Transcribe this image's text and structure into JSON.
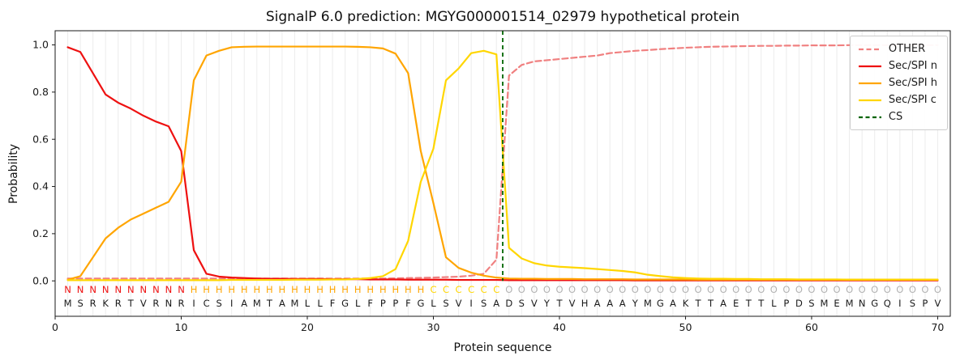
{
  "chart_data": {
    "type": "line",
    "title": "SignalP 6.0 prediction: MGYG000001514_02979 hypothetical protein",
    "xlabel": "Protein sequence",
    "ylabel": "Probability",
    "xlim": [
      0,
      71
    ],
    "ylim": [
      -0.15,
      1.06
    ],
    "xticks": [
      0,
      10,
      20,
      30,
      40,
      50,
      60,
      70
    ],
    "yticks": [
      0.0,
      0.2,
      0.4,
      0.6,
      0.8,
      1.0
    ],
    "grid": "vertical-per-residue",
    "legend_position": "upper-right",
    "x": [
      1,
      2,
      3,
      4,
      5,
      6,
      7,
      8,
      9,
      10,
      11,
      12,
      13,
      14,
      15,
      16,
      17,
      18,
      19,
      20,
      21,
      22,
      23,
      24,
      25,
      26,
      27,
      28,
      29,
      30,
      31,
      32,
      33,
      34,
      35,
      36,
      37,
      38,
      39,
      40,
      41,
      42,
      43,
      44,
      45,
      46,
      47,
      48,
      49,
      50,
      51,
      52,
      53,
      54,
      55,
      56,
      57,
      58,
      59,
      60,
      61,
      62,
      63,
      64,
      65,
      66,
      67,
      68,
      69,
      70
    ],
    "series": [
      {
        "name": "OTHER",
        "color": "#f08080",
        "dash": "7 4",
        "values": [
          0.01,
          0.01,
          0.01,
          0.01,
          0.01,
          0.01,
          0.01,
          0.01,
          0.01,
          0.01,
          0.01,
          0.01,
          0.01,
          0.01,
          0.01,
          0.01,
          0.01,
          0.01,
          0.01,
          0.01,
          0.01,
          0.01,
          0.01,
          0.01,
          0.01,
          0.01,
          0.011,
          0.012,
          0.013,
          0.014,
          0.016,
          0.018,
          0.022,
          0.03,
          0.09,
          0.87,
          0.915,
          0.93,
          0.935,
          0.94,
          0.945,
          0.95,
          0.955,
          0.965,
          0.97,
          0.975,
          0.978,
          0.982,
          0.985,
          0.988,
          0.99,
          0.992,
          0.993,
          0.994,
          0.995,
          0.996,
          0.996,
          0.997,
          0.997,
          0.998,
          0.998,
          0.998,
          0.999,
          0.999,
          0.999,
          0.999,
          0.999,
          0.999,
          0.999,
          0.999
        ]
      },
      {
        "name": "Sec/SPI n",
        "color": "#ee1111",
        "dash": null,
        "values": [
          0.99,
          0.97,
          0.88,
          0.79,
          0.755,
          0.73,
          0.7,
          0.675,
          0.655,
          0.55,
          0.13,
          0.03,
          0.018,
          0.014,
          0.012,
          0.01,
          0.009,
          0.009,
          0.008,
          0.008,
          0.008,
          0.007,
          0.007,
          0.007,
          0.006,
          0.006,
          0.006,
          0.005,
          0.005,
          0.005,
          0.005,
          0.004,
          0.004,
          0.004,
          0.004,
          0.003,
          0.003,
          0.003,
          0.003,
          0.003,
          0.003,
          0.003,
          0.003,
          0.003,
          0.003,
          0.002,
          0.002,
          0.002,
          0.002,
          0.002,
          0.002,
          0.002,
          0.002,
          0.002,
          0.002,
          0.002,
          0.002,
          0.002,
          0.002,
          0.002,
          0.002,
          0.002,
          0.002,
          0.002,
          0.002,
          0.002,
          0.002,
          0.002,
          0.002,
          0.002
        ]
      },
      {
        "name": "Sec/SPI h",
        "color": "#ffa500",
        "dash": null,
        "values": [
          0.005,
          0.02,
          0.1,
          0.18,
          0.225,
          0.26,
          0.285,
          0.31,
          0.335,
          0.42,
          0.85,
          0.955,
          0.975,
          0.99,
          0.992,
          0.993,
          0.993,
          0.993,
          0.993,
          0.993,
          0.993,
          0.993,
          0.993,
          0.992,
          0.99,
          0.985,
          0.963,
          0.88,
          0.55,
          0.33,
          0.1,
          0.055,
          0.035,
          0.022,
          0.014,
          0.01,
          0.009,
          0.009,
          0.008,
          0.008,
          0.008,
          0.007,
          0.007,
          0.007,
          0.007,
          0.006,
          0.006,
          0.006,
          0.006,
          0.006,
          0.005,
          0.005,
          0.005,
          0.005,
          0.005,
          0.005,
          0.005,
          0.005,
          0.005,
          0.005,
          0.005,
          0.005,
          0.005,
          0.005,
          0.005,
          0.005,
          0.005,
          0.005,
          0.005,
          0.005
        ]
      },
      {
        "name": "Sec/SPI c",
        "color": "#ffd600",
        "dash": null,
        "values": [
          0.003,
          0.003,
          0.003,
          0.003,
          0.003,
          0.003,
          0.003,
          0.003,
          0.003,
          0.003,
          0.003,
          0.003,
          0.003,
          0.004,
          0.004,
          0.004,
          0.004,
          0.004,
          0.005,
          0.005,
          0.005,
          0.006,
          0.006,
          0.008,
          0.012,
          0.02,
          0.05,
          0.17,
          0.42,
          0.56,
          0.85,
          0.9,
          0.965,
          0.975,
          0.96,
          0.14,
          0.095,
          0.075,
          0.065,
          0.06,
          0.057,
          0.054,
          0.05,
          0.046,
          0.042,
          0.036,
          0.026,
          0.02,
          0.015,
          0.012,
          0.01,
          0.009,
          0.009,
          0.008,
          0.008,
          0.007,
          0.007,
          0.007,
          0.006,
          0.006,
          0.006,
          0.006,
          0.005,
          0.005,
          0.005,
          0.005,
          0.005,
          0.005,
          0.005,
          0.005
        ]
      }
    ],
    "cs": {
      "name": "CS",
      "x": 35.5,
      "color": "#006400",
      "dash": "5 4"
    },
    "sequence": "MSRKRTVRNRICSIAMTAMLLFGLFPPFGLSVISADSVYTVHAAAYMGAKTTAETTLPDSMEMNGQISPV",
    "regions": "NNNNNNNNNNHHHHHHHHHHHHHHHHHHHCCCCCCOOOOOOOOOOOOOOOOOOOOOOOOOOOOOOOOOOO",
    "region_colors": {
      "N": "#ee1111",
      "H": "#ffa500",
      "C": "#ffd600",
      "O": "#b3b3b3"
    },
    "sequence_color": "#1a1a1a",
    "grid_color": "#ececec",
    "axes_color": "#1a1a1a"
  }
}
